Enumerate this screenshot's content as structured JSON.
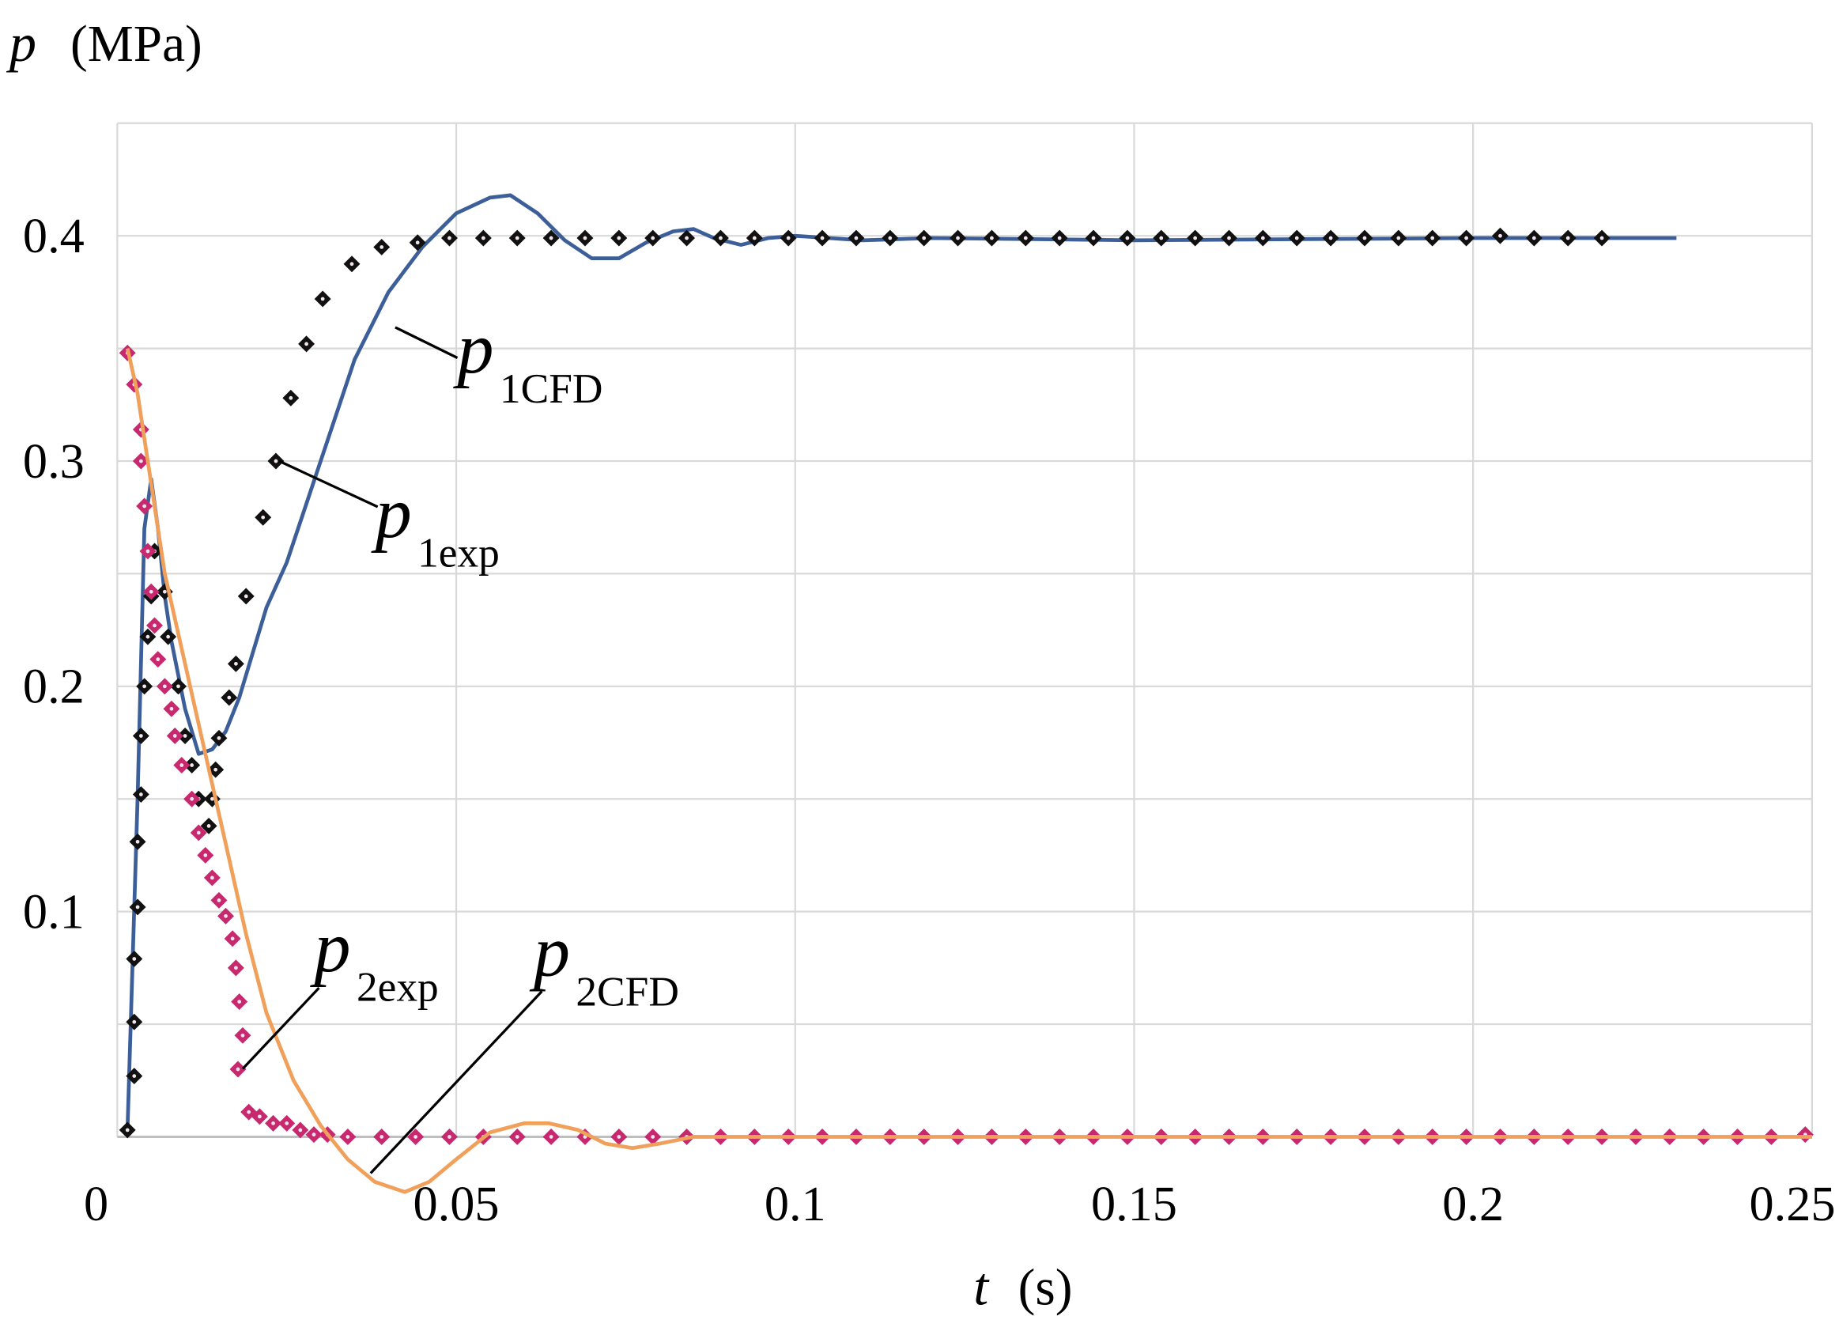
{
  "chart_data": {
    "type": "scatter-line",
    "y_axis_label": {
      "symbol": "p",
      "unit": "(MPa)"
    },
    "x_axis_label": {
      "symbol": "t",
      "unit": "(s)"
    },
    "xlim": [
      0,
      0.25
    ],
    "ylim": [
      0,
      0.45
    ],
    "xticks": [
      0,
      0.05,
      0.1,
      0.15,
      0.2,
      0.25
    ],
    "yticks": [
      0.1,
      0.2,
      0.3,
      0.4
    ],
    "ygrid": [
      0,
      0.05,
      0.1,
      0.15,
      0.2,
      0.25,
      0.3,
      0.35,
      0.4,
      0.45
    ],
    "grid": true,
    "series": [
      {
        "label_main": "p",
        "label_sub": "1CFD",
        "style": "line",
        "color": "#3d5f99",
        "x": [
          0.0015,
          0.003,
          0.004,
          0.005,
          0.006,
          0.007,
          0.008,
          0.01,
          0.012,
          0.014,
          0.016,
          0.018,
          0.02,
          0.022,
          0.025,
          0.03,
          0.035,
          0.04,
          0.045,
          0.05,
          0.055,
          0.058,
          0.062,
          0.066,
          0.07,
          0.074,
          0.078,
          0.082,
          0.085,
          0.088,
          0.092,
          0.096,
          0.1,
          0.11,
          0.12,
          0.15,
          0.2,
          0.23
        ],
        "values": [
          0.003,
          0.15,
          0.27,
          0.292,
          0.27,
          0.24,
          0.22,
          0.19,
          0.17,
          0.172,
          0.18,
          0.195,
          0.215,
          0.235,
          0.255,
          0.3,
          0.345,
          0.375,
          0.395,
          0.41,
          0.417,
          0.418,
          0.41,
          0.398,
          0.39,
          0.39,
          0.397,
          0.402,
          0.403,
          0.399,
          0.396,
          0.399,
          0.4,
          0.398,
          0.399,
          0.398,
          0.399,
          0.399
        ]
      },
      {
        "label_main": "p",
        "label_sub": "1exp",
        "style": "marker",
        "color": "#111111",
        "x": [
          0.0015,
          0.0025,
          0.0025,
          0.0025,
          0.003,
          0.003,
          0.0035,
          0.0035,
          0.004,
          0.0045,
          0.005,
          0.0055,
          0.007,
          0.0075,
          0.009,
          0.01,
          0.011,
          0.012,
          0.0135,
          0.014,
          0.0145,
          0.015,
          0.0165,
          0.0175,
          0.019,
          0.0215,
          0.0234,
          0.0256,
          0.0279,
          0.0303,
          0.0346,
          0.039,
          0.0443,
          0.049,
          0.054,
          0.059,
          0.064,
          0.069,
          0.074,
          0.079,
          0.084,
          0.089,
          0.094,
          0.099,
          0.104,
          0.109,
          0.114,
          0.119,
          0.124,
          0.129,
          0.134,
          0.139,
          0.144,
          0.149,
          0.154,
          0.159,
          0.164,
          0.169,
          0.174,
          0.179,
          0.184,
          0.189,
          0.194,
          0.199,
          0.204,
          0.209,
          0.214,
          0.219
        ],
        "values": [
          0.003,
          0.027,
          0.051,
          0.079,
          0.102,
          0.131,
          0.152,
          0.178,
          0.2,
          0.222,
          0.24,
          0.26,
          0.242,
          0.222,
          0.2,
          0.178,
          0.165,
          0.15,
          0.138,
          0.15,
          0.163,
          0.177,
          0.195,
          0.21,
          0.24,
          0.275,
          0.3,
          0.328,
          0.352,
          0.372,
          0.3875,
          0.395,
          0.397,
          0.399,
          0.399,
          0.399,
          0.399,
          0.399,
          0.399,
          0.399,
          0.399,
          0.399,
          0.399,
          0.399,
          0.399,
          0.399,
          0.399,
          0.399,
          0.399,
          0.399,
          0.399,
          0.399,
          0.399,
          0.399,
          0.399,
          0.399,
          0.399,
          0.399,
          0.399,
          0.399,
          0.399,
          0.399,
          0.399,
          0.399,
          0.4,
          0.399,
          0.399,
          0.399
        ]
      },
      {
        "label_main": "p",
        "label_sub": "2exp",
        "style": "marker",
        "color": "#c8286e",
        "x": [
          0.0015,
          0.0025,
          0.0035,
          0.0035,
          0.004,
          0.0045,
          0.005,
          0.0055,
          0.006,
          0.007,
          0.008,
          0.0085,
          0.0095,
          0.011,
          0.012,
          0.013,
          0.014,
          0.015,
          0.016,
          0.017,
          0.0175,
          0.018,
          0.0178,
          0.0185,
          0.0194,
          0.021,
          0.023,
          0.025,
          0.027,
          0.029,
          0.031,
          0.034,
          0.039,
          0.044,
          0.049,
          0.054,
          0.059,
          0.064,
          0.069,
          0.074,
          0.079,
          0.084,
          0.089,
          0.094,
          0.099,
          0.104,
          0.109,
          0.114,
          0.119,
          0.124,
          0.129,
          0.134,
          0.139,
          0.144,
          0.149,
          0.154,
          0.159,
          0.164,
          0.169,
          0.174,
          0.179,
          0.184,
          0.189,
          0.194,
          0.199,
          0.204,
          0.209,
          0.214,
          0.219,
          0.224,
          0.229,
          0.234,
          0.239,
          0.244,
          0.249
        ],
        "values": [
          0.348,
          0.334,
          0.314,
          0.3,
          0.28,
          0.26,
          0.242,
          0.227,
          0.212,
          0.2,
          0.19,
          0.178,
          0.165,
          0.15,
          0.135,
          0.125,
          0.115,
          0.105,
          0.098,
          0.088,
          0.075,
          0.06,
          0.03,
          0.045,
          0.011,
          0.009,
          0.006,
          0.006,
          0.003,
          0.001,
          0.001,
          0,
          0,
          0,
          0,
          0,
          0,
          0,
          0,
          0,
          0,
          0,
          0,
          0,
          0,
          0,
          0,
          0,
          0,
          0,
          0,
          0,
          0,
          0,
          0,
          0,
          0,
          0,
          0,
          0,
          0,
          0,
          0,
          0,
          0,
          0,
          0,
          0,
          0,
          0,
          0,
          0,
          0,
          0,
          0.001
        ]
      },
      {
        "label_main": "p",
        "label_sub": "2CFD",
        "style": "line",
        "color": "#f0a05a",
        "x": [
          0.0015,
          0.003,
          0.005,
          0.007,
          0.01,
          0.013,
          0.016,
          0.019,
          0.022,
          0.026,
          0.03,
          0.034,
          0.038,
          0.0424,
          0.046,
          0.05,
          0.055,
          0.06,
          0.0637,
          0.068,
          0.072,
          0.076,
          0.08,
          0.085,
          0.1,
          0.25
        ],
        "values": [
          0.35,
          0.33,
          0.29,
          0.25,
          0.21,
          0.17,
          0.13,
          0.09,
          0.055,
          0.025,
          0.005,
          -0.01,
          -0.02,
          -0.0245,
          -0.02,
          -0.01,
          0.002,
          0.006,
          0.006,
          0.003,
          -0.003,
          -0.005,
          -0.003,
          0,
          0,
          0
        ]
      }
    ]
  }
}
